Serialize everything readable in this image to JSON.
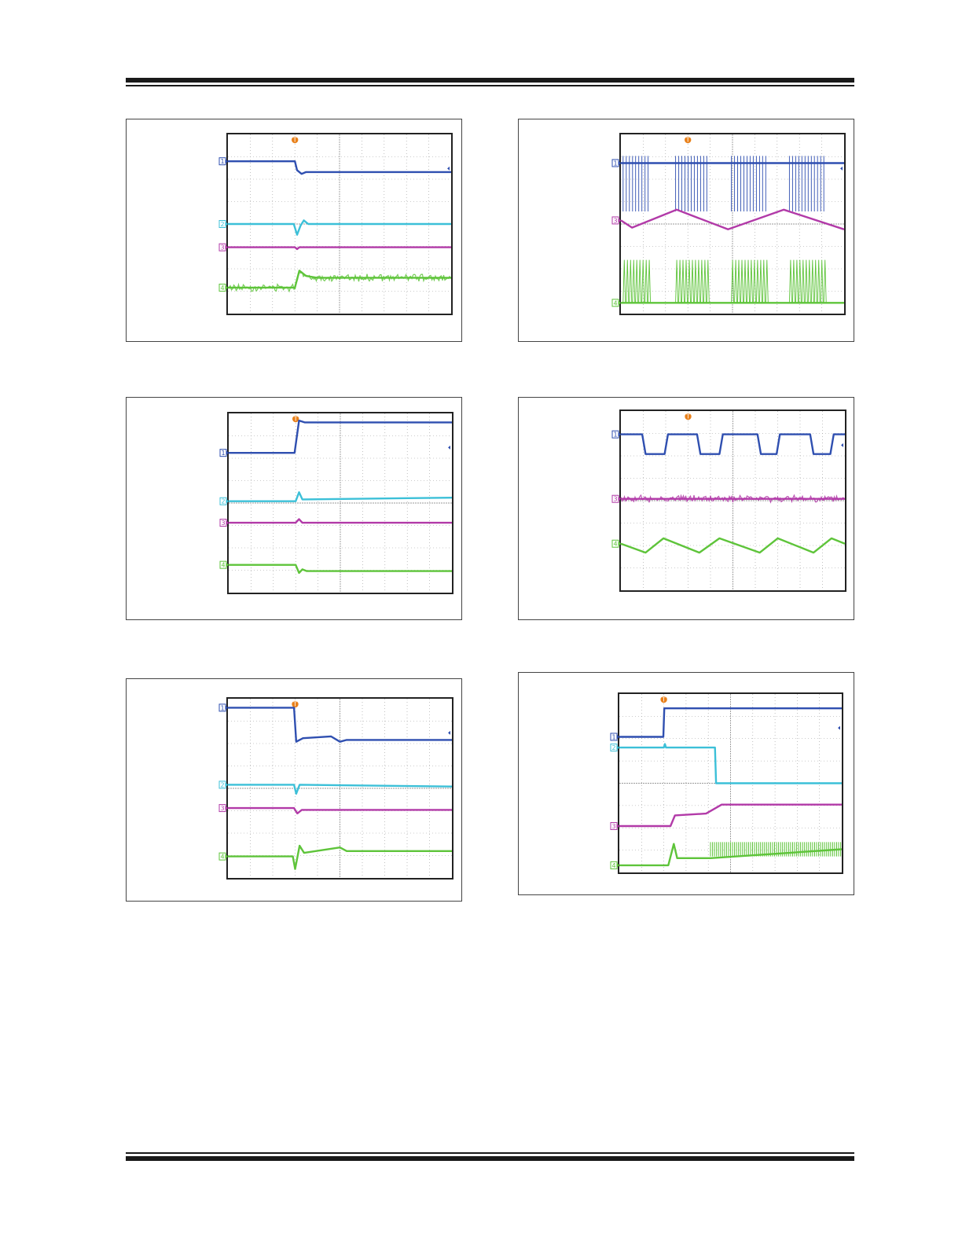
{
  "colors": {
    "ch1": "#2f4fb0",
    "ch2": "#3cc0d8",
    "ch3": "#b23aa8",
    "ch4": "#5ec43a",
    "trigger": "#e8801a",
    "grid": "#9a9a9a"
  },
  "chart_data": [
    {
      "type": "line",
      "channels": [
        {
          "id": "1",
          "marker": "1",
          "points": [
            [
              0,
              0.85
            ],
            [
              3.0,
              0.85
            ],
            [
              3.1,
              0.8
            ],
            [
              3.3,
              0.78
            ],
            [
              3.5,
              0.79
            ],
            [
              10,
              0.79
            ]
          ]
        },
        {
          "id": "2",
          "marker": "2",
          "points": [
            [
              0,
              0.5
            ],
            [
              2.95,
              0.5
            ],
            [
              3.1,
              0.44
            ],
            [
              3.25,
              0.49
            ],
            [
              3.4,
              0.52
            ],
            [
              3.6,
              0.5
            ],
            [
              10,
              0.5
            ]
          ]
        },
        {
          "id": "3",
          "marker": "3",
          "points": [
            [
              0,
              0.37
            ],
            [
              3.0,
              0.37
            ],
            [
              3.1,
              0.36
            ],
            [
              3.2,
              0.37
            ],
            [
              10,
              0.37
            ]
          ]
        },
        {
          "id": "4",
          "marker": "4",
          "noisy": true,
          "points": [
            [
              0,
              0.145
            ],
            [
              3.0,
              0.145
            ],
            [
              3.2,
              0.24
            ],
            [
              3.5,
              0.21
            ],
            [
              4.0,
              0.2
            ],
            [
              10,
              0.2
            ]
          ]
        }
      ]
    },
    {
      "type": "line",
      "channels": [
        {
          "id": "1",
          "marker": "1",
          "burst": true,
          "points": [
            [
              0,
              0.84
            ],
            [
              10,
              0.84
            ]
          ]
        },
        {
          "id": "3",
          "marker": "3",
          "points": [
            [
              0,
              0.52
            ],
            [
              0.5,
              0.48
            ],
            [
              2.5,
              0.58
            ],
            [
              4.8,
              0.47
            ],
            [
              7.3,
              0.58
            ],
            [
              10,
              0.47
            ]
          ]
        },
        {
          "id": "4",
          "marker": "4",
          "burst": true,
          "points": [
            [
              0,
              0.06
            ],
            [
              10,
              0.06
            ]
          ]
        }
      ]
    },
    {
      "type": "line",
      "channels": [
        {
          "id": "1",
          "marker": "1",
          "points": [
            [
              0,
              0.78
            ],
            [
              2.95,
              0.78
            ],
            [
              3.15,
              0.96
            ],
            [
              3.4,
              0.95
            ],
            [
              10,
              0.95
            ]
          ]
        },
        {
          "id": "2",
          "marker": "2",
          "points": [
            [
              0,
              0.51
            ],
            [
              3.0,
              0.51
            ],
            [
              3.15,
              0.56
            ],
            [
              3.3,
              0.52
            ],
            [
              10,
              0.53
            ]
          ]
        },
        {
          "id": "3",
          "marker": "3",
          "points": [
            [
              0,
              0.39
            ],
            [
              3.0,
              0.39
            ],
            [
              3.15,
              0.41
            ],
            [
              3.3,
              0.39
            ],
            [
              10,
              0.39
            ]
          ]
        },
        {
          "id": "4",
          "marker": "4",
          "points": [
            [
              0,
              0.155
            ],
            [
              3.0,
              0.155
            ],
            [
              3.15,
              0.11
            ],
            [
              3.3,
              0.13
            ],
            [
              3.5,
              0.12
            ],
            [
              10,
              0.12
            ]
          ]
        }
      ]
    },
    {
      "type": "line",
      "channels": [
        {
          "id": "1",
          "marker": "1",
          "points": [
            [
              0,
              0.87
            ],
            [
              0.95,
              0.87
            ],
            [
              1.1,
              0.76
            ],
            [
              1.95,
              0.76
            ],
            [
              2.1,
              0.87
            ],
            [
              3.4,
              0.87
            ],
            [
              3.55,
              0.76
            ],
            [
              4.4,
              0.76
            ],
            [
              4.55,
              0.87
            ],
            [
              6.1,
              0.87
            ],
            [
              6.25,
              0.76
            ],
            [
              6.95,
              0.76
            ],
            [
              7.1,
              0.87
            ],
            [
              8.45,
              0.87
            ],
            [
              8.6,
              0.76
            ],
            [
              9.35,
              0.76
            ],
            [
              9.5,
              0.87
            ],
            [
              10,
              0.87
            ]
          ]
        },
        {
          "id": "3",
          "marker": "3",
          "noisy": true,
          "points": [
            [
              0,
              0.51
            ],
            [
              10,
              0.51
            ]
          ]
        },
        {
          "id": "4",
          "marker": "4",
          "points": [
            [
              0,
              0.26
            ],
            [
              1.1,
              0.21
            ],
            [
              1.9,
              0.29
            ],
            [
              3.5,
              0.21
            ],
            [
              4.4,
              0.29
            ],
            [
              6.2,
              0.21
            ],
            [
              7.0,
              0.29
            ],
            [
              8.6,
              0.21
            ],
            [
              9.4,
              0.29
            ],
            [
              10,
              0.26
            ]
          ]
        }
      ]
    },
    {
      "type": "line",
      "channels": [
        {
          "id": "1",
          "marker": "1",
          "points": [
            [
              0,
              0.95
            ],
            [
              2.95,
              0.95
            ],
            [
              3.05,
              0.76
            ],
            [
              3.35,
              0.78
            ],
            [
              4.6,
              0.79
            ],
            [
              5.0,
              0.76
            ],
            [
              5.3,
              0.77
            ],
            [
              10,
              0.77
            ]
          ]
        },
        {
          "id": "2",
          "marker": "2",
          "points": [
            [
              0,
              0.52
            ],
            [
              2.95,
              0.52
            ],
            [
              3.05,
              0.47
            ],
            [
              3.2,
              0.52
            ],
            [
              10,
              0.51
            ]
          ]
        },
        {
          "id": "3",
          "marker": "3",
          "points": [
            [
              0,
              0.39
            ],
            [
              2.95,
              0.39
            ],
            [
              3.1,
              0.36
            ],
            [
              3.3,
              0.38
            ],
            [
              10,
              0.38
            ]
          ]
        },
        {
          "id": "4",
          "marker": "4",
          "points": [
            [
              0,
              0.12
            ],
            [
              2.9,
              0.12
            ],
            [
              3.0,
              0.05
            ],
            [
              3.2,
              0.18
            ],
            [
              3.4,
              0.14
            ],
            [
              5.0,
              0.17
            ],
            [
              5.3,
              0.15
            ],
            [
              10,
              0.15
            ]
          ]
        }
      ]
    },
    {
      "type": "line",
      "channels": [
        {
          "id": "1",
          "marker": "1",
          "points": [
            [
              0,
              0.76
            ],
            [
              1.98,
              0.76
            ],
            [
              2.02,
              0.92
            ],
            [
              10,
              0.92
            ]
          ]
        },
        {
          "id": "2",
          "marker": "2",
          "points": [
            [
              0,
              0.7
            ],
            [
              2.0,
              0.7
            ],
            [
              2.05,
              0.72
            ],
            [
              2.1,
              0.7
            ],
            [
              4.3,
              0.7
            ],
            [
              4.35,
              0.5
            ],
            [
              10,
              0.5
            ]
          ]
        },
        {
          "id": "3",
          "marker": "3",
          "points": [
            [
              0,
              0.26
            ],
            [
              2.3,
              0.26
            ],
            [
              2.5,
              0.32
            ],
            [
              3.9,
              0.33
            ],
            [
              4.6,
              0.38
            ],
            [
              10,
              0.38
            ]
          ]
        },
        {
          "id": "4",
          "marker": "4",
          "burst_after": 4.1,
          "points": [
            [
              0,
              0.04
            ],
            [
              2.2,
              0.04
            ],
            [
              2.45,
              0.16
            ],
            [
              2.6,
              0.08
            ],
            [
              3.8,
              0.08
            ],
            [
              4.1,
              0.08
            ],
            [
              10,
              0.13
            ]
          ]
        }
      ]
    }
  ]
}
